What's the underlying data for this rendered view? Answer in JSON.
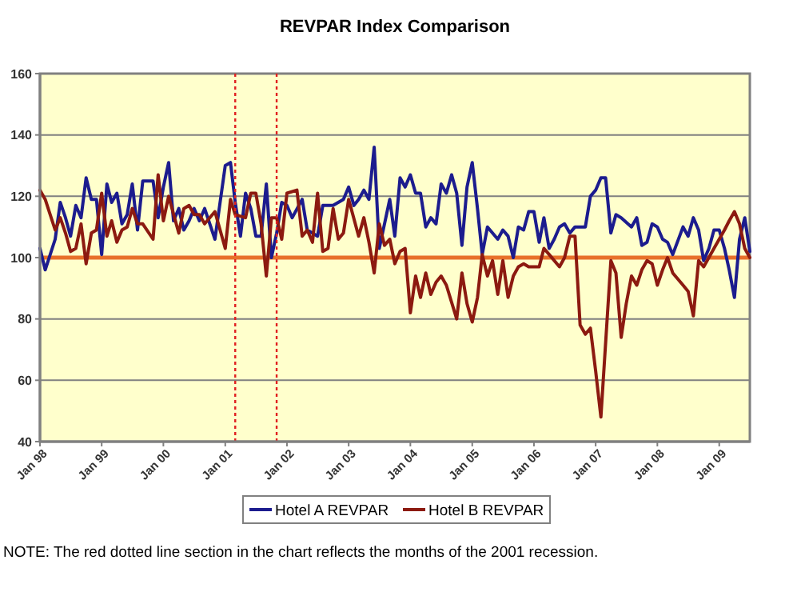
{
  "chart_data": {
    "type": "line",
    "title": "REVPAR Index Comparison",
    "xlim": [
      "1998-01",
      "2009-07"
    ],
    "xticks": [
      {
        "value": "1998-01",
        "label": "Jan 98"
      },
      {
        "value": "1999-01",
        "label": "Jan 99"
      },
      {
        "value": "2000-01",
        "label": "Jan 00"
      },
      {
        "value": "2001-01",
        "label": "Jan 01"
      },
      {
        "value": "2002-01",
        "label": "Jan 02"
      },
      {
        "value": "2003-01",
        "label": "Jan 03"
      },
      {
        "value": "2004-01",
        "label": "Jan 04"
      },
      {
        "value": "2005-01",
        "label": "Jan 05"
      },
      {
        "value": "2006-01",
        "label": "Jan 06"
      },
      {
        "value": "2007-01",
        "label": "Jan 07"
      },
      {
        "value": "2008-01",
        "label": "Jan 08"
      },
      {
        "value": "2009-01",
        "label": "Jan 09"
      }
    ],
    "ylim": [
      40,
      160
    ],
    "yticks": [
      40,
      60,
      80,
      100,
      120,
      140,
      160
    ],
    "grid": "y",
    "legend": "bottom",
    "marker": "none",
    "line_style": "solid",
    "series": [
      {
        "name": "Hotel A REVPAR",
        "color": "#1c1c8e",
        "x": [
          "1998-01",
          "1998-02",
          "1998-04",
          "1998-05",
          "1998-06",
          "1998-07",
          "1998-08",
          "1998-09",
          "1998-10",
          "1998-11",
          "1998-12",
          "1999-01",
          "1999-02",
          "1999-03",
          "1999-04",
          "1999-05",
          "1999-06",
          "1999-07",
          "1999-08",
          "1999-09",
          "1999-11",
          "1999-12",
          "2000-01",
          "2000-02",
          "2000-03",
          "2000-04",
          "2000-05",
          "2000-06",
          "2000-07",
          "2000-08",
          "2000-09",
          "2000-11",
          "2001-01",
          "2001-02",
          "2001-03",
          "2001-04",
          "2001-05",
          "2001-06",
          "2001-07",
          "2001-08",
          "2001-09",
          "2001-10",
          "2001-11",
          "2001-12",
          "2002-01",
          "2002-02",
          "2002-04",
          "2002-05",
          "2002-07",
          "2002-08",
          "2002-10",
          "2002-12",
          "2003-01",
          "2003-02",
          "2003-03",
          "2003-04",
          "2003-05",
          "2003-06",
          "2003-07",
          "2003-08",
          "2003-09",
          "2003-10",
          "2003-11",
          "2003-12",
          "2004-01",
          "2004-02",
          "2004-03",
          "2004-04",
          "2004-05",
          "2004-06",
          "2004-07",
          "2004-08",
          "2004-09",
          "2004-10",
          "2004-11",
          "2004-12",
          "2005-01",
          "2005-02",
          "2005-03",
          "2005-04",
          "2005-06",
          "2005-07",
          "2005-08",
          "2005-09",
          "2005-10",
          "2005-11",
          "2005-12",
          "2006-01",
          "2006-02",
          "2006-03",
          "2006-04",
          "2006-05",
          "2006-06",
          "2006-07",
          "2006-08",
          "2006-09",
          "2006-11",
          "2006-12",
          "2007-01",
          "2007-02",
          "2007-03",
          "2007-04",
          "2007-05",
          "2007-06",
          "2007-08",
          "2007-09",
          "2007-10",
          "2007-11",
          "2007-12",
          "2008-01",
          "2008-02",
          "2008-03",
          "2008-04",
          "2008-06",
          "2008-07",
          "2008-08",
          "2008-09",
          "2008-10",
          "2008-11",
          "2008-12",
          "2009-01",
          "2009-02",
          "2009-03",
          "2009-04",
          "2009-05",
          "2009-06",
          "2009-07"
        ],
        "values": [
          103,
          96,
          106,
          118,
          113,
          107,
          117,
          113,
          126,
          119,
          119,
          101,
          124,
          118,
          121,
          111,
          114,
          124,
          109,
          125,
          125,
          113,
          123,
          131,
          112,
          116,
          109,
          112,
          116,
          112,
          116,
          106,
          130,
          131,
          118,
          107,
          121,
          116,
          107,
          107,
          124,
          100,
          108,
          118,
          117,
          113,
          119,
          109,
          107,
          117,
          117,
          119,
          123,
          117,
          119,
          122,
          119,
          136,
          103,
          111,
          119,
          107,
          126,
          123,
          127,
          121,
          121,
          110,
          113,
          111,
          124,
          121,
          127,
          121,
          104,
          123,
          131,
          116,
          101,
          110,
          106,
          109,
          107,
          100,
          110,
          109,
          115,
          115,
          105,
          113,
          103,
          106,
          110,
          111,
          108,
          110,
          110,
          120,
          122,
          126,
          126,
          108,
          114,
          113,
          110,
          113,
          104,
          105,
          111,
          110,
          106,
          105,
          101,
          110,
          107,
          113,
          109,
          99,
          103,
          109,
          109,
          103,
          96,
          87,
          106,
          113,
          102
        ]
      },
      {
        "name": "Hotel B REVPAR",
        "color": "#8c1a10",
        "x": [
          "1998-01",
          "1998-02",
          "1998-04",
          "1998-05",
          "1998-06",
          "1998-07",
          "1998-08",
          "1998-09",
          "1998-10",
          "1998-11",
          "1998-12",
          "1999-01",
          "1999-02",
          "1999-03",
          "1999-04",
          "1999-05",
          "1999-06",
          "1999-07",
          "1999-08",
          "1999-09",
          "1999-11",
          "1999-12",
          "2000-01",
          "2000-02",
          "2000-04",
          "2000-05",
          "2000-06",
          "2000-07",
          "2000-08",
          "2000-09",
          "2000-11",
          "2001-01",
          "2001-02",
          "2001-03",
          "2001-05",
          "2001-06",
          "2001-07",
          "2001-08",
          "2001-09",
          "2001-10",
          "2001-11",
          "2001-12",
          "2002-01",
          "2002-03",
          "2002-04",
          "2002-05",
          "2002-06",
          "2002-07",
          "2002-08",
          "2002-09",
          "2002-10",
          "2002-11",
          "2002-12",
          "2003-01",
          "2003-03",
          "2003-04",
          "2003-05",
          "2003-06",
          "2003-07",
          "2003-08",
          "2003-09",
          "2003-10",
          "2003-11",
          "2003-12",
          "2004-01",
          "2004-02",
          "2004-03",
          "2004-04",
          "2004-05",
          "2004-06",
          "2004-07",
          "2004-08",
          "2004-10",
          "2004-11",
          "2004-12",
          "2005-01",
          "2005-02",
          "2005-03",
          "2005-04",
          "2005-05",
          "2005-06",
          "2005-07",
          "2005-08",
          "2005-09",
          "2005-10",
          "2005-11",
          "2005-12",
          "2006-02",
          "2006-03",
          "2006-04",
          "2006-06",
          "2006-07",
          "2006-08",
          "2006-09",
          "2006-10",
          "2006-11",
          "2006-12",
          "2007-01",
          "2007-02",
          "2007-04",
          "2007-05",
          "2007-06",
          "2007-07",
          "2007-08",
          "2007-09",
          "2007-10",
          "2007-11",
          "2007-12",
          "2008-01",
          "2008-02",
          "2008-03",
          "2008-04",
          "2008-05",
          "2008-06",
          "2008-07",
          "2008-08",
          "2008-09",
          "2008-10",
          "2008-12",
          "2009-02",
          "2009-03",
          "2009-04",
          "2009-05",
          "2009-06",
          "2009-07"
        ],
        "values": [
          122,
          119,
          109,
          113,
          108,
          102,
          103,
          111,
          98,
          108,
          109,
          121,
          107,
          112,
          105,
          109,
          110,
          116,
          111,
          111,
          106,
          127,
          112,
          120,
          108,
          116,
          117,
          114,
          114,
          111,
          115,
          103,
          119,
          114,
          113,
          121,
          121,
          111,
          94,
          113,
          113,
          106,
          121,
          122,
          107,
          109,
          105,
          121,
          102,
          103,
          116,
          106,
          108,
          119,
          107,
          113,
          105,
          95,
          111,
          104,
          106,
          98,
          102,
          103,
          82,
          94,
          87,
          95,
          88,
          92,
          94,
          91,
          80,
          95,
          85,
          79,
          87,
          101,
          94,
          99,
          88,
          99,
          87,
          94,
          97,
          98,
          97,
          97,
          103,
          101,
          97,
          100,
          107,
          107,
          78,
          75,
          77,
          63,
          48,
          99,
          95,
          74,
          85,
          94,
          91,
          96,
          99,
          98,
          91,
          96,
          100,
          95,
          93,
          91,
          89,
          81,
          99,
          97,
          103,
          109,
          112,
          115,
          111,
          103,
          100
        ]
      }
    ],
    "ref_lines": [
      {
        "axis": "y",
        "value": 100,
        "color": "#e8702a",
        "line_style": "solid"
      },
      {
        "axis": "x",
        "value": "2001-03",
        "color": "#e02020",
        "line_style": "dotted"
      },
      {
        "axis": "x",
        "value": "2001-11",
        "color": "#e02020",
        "line_style": "dotted"
      }
    ],
    "annotations": [
      "NOTE: The red dotted line section in the chart reflects the months of the 2001 recession."
    ]
  }
}
